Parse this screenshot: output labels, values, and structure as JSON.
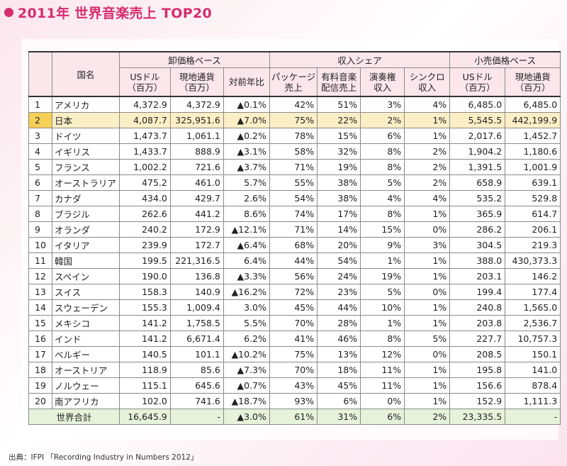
{
  "title": "2011年 世界音楽売上 TOP20",
  "source": "出典：IFPI 「Recording Industry in Numbers 2012」",
  "headers": {
    "country": "国名",
    "group_wholesale": "卸価格ベース",
    "group_share": "収入シェア",
    "group_retail": "小売価格ベース",
    "usd": "USドル\n（百万）",
    "local": "現地通貨\n（百万）",
    "yoy": "対前年比",
    "package": "パッケージ\n売上",
    "paid_digital": "有料音楽\n配信売上",
    "performance": "演奏権\n収入",
    "sync": "シンクロ\n収入",
    "r_usd": "USドル\n（百万）",
    "r_local": "現地通貨\n（百万）"
  },
  "rows": [
    {
      "rank": "1",
      "country": "アメリカ",
      "usd": "4,372.9",
      "local": "4,372.9",
      "yoy": "▲0.1%",
      "package": "42%",
      "digital": "51%",
      "perf": "3%",
      "sync": "4%",
      "r_usd": "6,485.0",
      "r_local": "6,485.0"
    },
    {
      "rank": "2",
      "country": "日本",
      "usd": "4,087.7",
      "local": "325,951.6",
      "yoy": "▲7.0%",
      "package": "75%",
      "digital": "22%",
      "perf": "2%",
      "sync": "1%",
      "r_usd": "5,545.5",
      "r_local": "442,199.9"
    },
    {
      "rank": "3",
      "country": "ドイツ",
      "usd": "1,473.7",
      "local": "1,061.1",
      "yoy": "▲0.2%",
      "package": "78%",
      "digital": "15%",
      "perf": "6%",
      "sync": "1%",
      "r_usd": "2,017.6",
      "r_local": "1,452.7"
    },
    {
      "rank": "4",
      "country": "イギリス",
      "usd": "1,433.7",
      "local": "888.9",
      "yoy": "▲3.1%",
      "package": "58%",
      "digital": "32%",
      "perf": "8%",
      "sync": "2%",
      "r_usd": "1,904.2",
      "r_local": "1,180.6"
    },
    {
      "rank": "5",
      "country": "フランス",
      "usd": "1,002.2",
      "local": "721.6",
      "yoy": "▲3.7%",
      "package": "71%",
      "digital": "19%",
      "perf": "8%",
      "sync": "2%",
      "r_usd": "1,391.5",
      "r_local": "1,001.9"
    },
    {
      "rank": "6",
      "country": "オーストラリア",
      "usd": "475.2",
      "local": "461.0",
      "yoy": "5.7%",
      "package": "55%",
      "digital": "38%",
      "perf": "5%",
      "sync": "2%",
      "r_usd": "658.9",
      "r_local": "639.1"
    },
    {
      "rank": "7",
      "country": "カナダ",
      "usd": "434.0",
      "local": "429.7",
      "yoy": "2.6%",
      "package": "54%",
      "digital": "38%",
      "perf": "4%",
      "sync": "4%",
      "r_usd": "535.2",
      "r_local": "529.8"
    },
    {
      "rank": "8",
      "country": "ブラジル",
      "usd": "262.6",
      "local": "441.2",
      "yoy": "8.6%",
      "package": "74%",
      "digital": "17%",
      "perf": "8%",
      "sync": "1%",
      "r_usd": "365.9",
      "r_local": "614.7"
    },
    {
      "rank": "9",
      "country": "オランダ",
      "usd": "240.2",
      "local": "172.9",
      "yoy": "▲12.1%",
      "package": "71%",
      "digital": "14%",
      "perf": "15%",
      "sync": "0%",
      "r_usd": "286.2",
      "r_local": "206.1"
    },
    {
      "rank": "10",
      "country": "イタリア",
      "usd": "239.9",
      "local": "172.7",
      "yoy": "▲6.4%",
      "package": "68%",
      "digital": "20%",
      "perf": "9%",
      "sync": "3%",
      "r_usd": "304.5",
      "r_local": "219.3"
    },
    {
      "rank": "11",
      "country": "韓国",
      "usd": "199.5",
      "local": "221,316.5",
      "yoy": "6.4%",
      "package": "44%",
      "digital": "54%",
      "perf": "1%",
      "sync": "1%",
      "r_usd": "388.0",
      "r_local": "430,373.3"
    },
    {
      "rank": "12",
      "country": "スペイン",
      "usd": "190.0",
      "local": "136.8",
      "yoy": "▲3.3%",
      "package": "56%",
      "digital": "24%",
      "perf": "19%",
      "sync": "1%",
      "r_usd": "203.1",
      "r_local": "146.2"
    },
    {
      "rank": "13",
      "country": "スイス",
      "usd": "158.3",
      "local": "140.9",
      "yoy": "▲16.2%",
      "package": "72%",
      "digital": "23%",
      "perf": "5%",
      "sync": "0%",
      "r_usd": "199.4",
      "r_local": "177.4"
    },
    {
      "rank": "14",
      "country": "スウェーデン",
      "usd": "155.3",
      "local": "1,009.4",
      "yoy": "3.0%",
      "package": "45%",
      "digital": "44%",
      "perf": "10%",
      "sync": "1%",
      "r_usd": "240.8",
      "r_local": "1,565.0"
    },
    {
      "rank": "15",
      "country": "メキシコ",
      "usd": "141.2",
      "local": "1,758.5",
      "yoy": "5.5%",
      "package": "70%",
      "digital": "28%",
      "perf": "1%",
      "sync": "1%",
      "r_usd": "203.8",
      "r_local": "2,536.7"
    },
    {
      "rank": "16",
      "country": "インド",
      "usd": "141.2",
      "local": "6,671.4",
      "yoy": "6.2%",
      "package": "41%",
      "digital": "46%",
      "perf": "8%",
      "sync": "5%",
      "r_usd": "227.7",
      "r_local": "10,757.3"
    },
    {
      "rank": "17",
      "country": "ベルギー",
      "usd": "140.5",
      "local": "101.1",
      "yoy": "▲10.2%",
      "package": "75%",
      "digital": "13%",
      "perf": "12%",
      "sync": "0%",
      "r_usd": "208.5",
      "r_local": "150.1"
    },
    {
      "rank": "18",
      "country": "オーストリア",
      "usd": "118.9",
      "local": "85.6",
      "yoy": "▲7.3%",
      "package": "70%",
      "digital": "18%",
      "perf": "11%",
      "sync": "1%",
      "r_usd": "195.8",
      "r_local": "141.0"
    },
    {
      "rank": "19",
      "country": "ノルウェー",
      "usd": "115.1",
      "local": "645.6",
      "yoy": "▲0.7%",
      "package": "43%",
      "digital": "45%",
      "perf": "11%",
      "sync": "1%",
      "r_usd": "156.6",
      "r_local": "878.4"
    },
    {
      "rank": "20",
      "country": "南アフリカ",
      "usd": "102.0",
      "local": "741.6",
      "yoy": "▲18.7%",
      "package": "93%",
      "digital": "6%",
      "perf": "0%",
      "sync": "1%",
      "r_usd": "152.9",
      "r_local": "1,111.3"
    }
  ],
  "total": {
    "label": "世界合計",
    "usd": "16,645.9",
    "local": "-",
    "yoy": "▲3.0%",
    "package": "61%",
    "digital": "31%",
    "perf": "6%",
    "sync": "2%",
    "r_usd": "23,335.5",
    "r_local": "-"
  },
  "highlight_rank": "2",
  "colors": {
    "accent": "#d62d6e",
    "header_bg": "#fbe6ec",
    "rank_bg": "#e6e9f7",
    "highlight": "#f6cf57",
    "highlight_row": "#fcefc6",
    "total_bg": "#e6f2d9"
  }
}
